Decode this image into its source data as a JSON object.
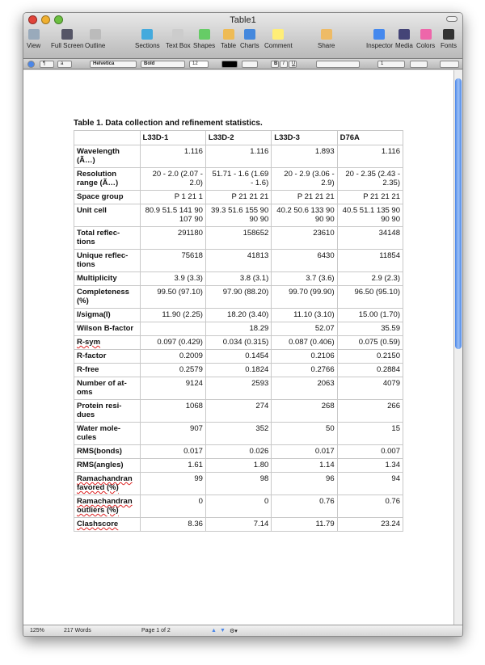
{
  "window": {
    "title": "Table1"
  },
  "toolbar": [
    {
      "label": "View",
      "icon": "view-icon"
    },
    {
      "label": "Full Screen",
      "icon": "fullscreen-icon"
    },
    {
      "label": "Outline",
      "icon": "outline-icon"
    },
    {
      "label": "Sections",
      "icon": "sections-icon"
    },
    {
      "label": "Text Box",
      "icon": "textbox-icon"
    },
    {
      "label": "Shapes",
      "icon": "shapes-icon"
    },
    {
      "label": "Table",
      "icon": "table-icon"
    },
    {
      "label": "Charts",
      "icon": "charts-icon"
    },
    {
      "label": "Comment",
      "icon": "comment-icon"
    },
    {
      "label": "Share",
      "icon": "share-icon"
    },
    {
      "label": "Inspector",
      "icon": "inspector-icon"
    },
    {
      "label": "Media",
      "icon": "media-icon"
    },
    {
      "label": "Colors",
      "icon": "colors-icon"
    },
    {
      "label": "Fonts",
      "icon": "fonts-icon"
    }
  ],
  "format_bar": {
    "paragraph_style": "¶",
    "char_style": "a",
    "font": "Helvetica",
    "weight": "Bold",
    "size": "12",
    "bold": "B",
    "italic": "I",
    "underline": "U",
    "line_spacing": "1"
  },
  "document": {
    "caption": "Table 1.  Data collection and refinement statistics.",
    "columns": [
      "",
      "L33D-1",
      "L33D-2",
      "L33D-3",
      "D76A"
    ],
    "rows": [
      {
        "label": "Wavelength (Ã…)",
        "values": [
          "1.116",
          "1.116",
          "1.893",
          "1.116"
        ]
      },
      {
        "label": "Resolution range (Ã…)",
        "values": [
          "20  - 2.0 (2.07 - 2.0)",
          "51.71  - 1.6 (1.69 - 1.6)",
          "20  - 2.9 (3.06 - 2.9)",
          "20  - 2.35 (2.43 - 2.35)"
        ]
      },
      {
        "label": "Space group",
        "values": [
          "P 1 21 1",
          "P 21 21 21",
          "P 21 21 21",
          "P 21 21 21"
        ]
      },
      {
        "label": "Unit cell",
        "values": [
          "80.9 51.5 141 90 107 90",
          "39.3 51.6 155 90 90 90",
          "40.2 50.6 133 90 90 90",
          "40.5 51.1 135 90 90 90"
        ]
      },
      {
        "label": "Total reflec-tions",
        "values": [
          "291180",
          "158652",
          "23610",
          "34148"
        ]
      },
      {
        "label": "Unique reflec-tions",
        "values": [
          "75618",
          "41813",
          "6430",
          "11854"
        ]
      },
      {
        "label": "Multiplicity",
        "values": [
          "3.9 (3.3)",
          "3.8 (3.1)",
          "3.7 (3.6)",
          "2.9 (2.3)"
        ]
      },
      {
        "label": "Completeness (%)",
        "values": [
          "99.50 (97.10)",
          "97.90 (88.20)",
          "99.70 (99.90)",
          "96.50 (95.10)"
        ]
      },
      {
        "label": "I/sigma(I)",
        "values": [
          "11.90 (2.25)",
          "18.20 (3.40)",
          "11.10 (3.10)",
          "15.00 (1.70)"
        ]
      },
      {
        "label": "Wilson B-factor",
        "values": [
          "",
          "18.29",
          "52.07",
          "35.59"
        ]
      },
      {
        "label": "R-sym",
        "values": [
          "0.097 (0.429)",
          "0.034 (0.315)",
          "0.087 (0.406)",
          "0.075 (0.59)"
        ],
        "spell": true
      },
      {
        "label": "R-factor",
        "values": [
          "0.2009",
          "0.1454",
          "0.2106",
          "0.2150"
        ]
      },
      {
        "label": "R-free",
        "values": [
          "0.2579",
          "0.1824",
          "0.2766",
          "0.2884"
        ]
      },
      {
        "label": "Number of at-oms",
        "values": [
          "9124",
          "2593",
          "2063",
          "4079"
        ]
      },
      {
        "label": "Protein resi-dues",
        "values": [
          "1068",
          "274",
          "268",
          "266"
        ]
      },
      {
        "label": "Water mole-cules",
        "values": [
          "907",
          "352",
          "50",
          "15"
        ]
      },
      {
        "label": "RMS(bonds)",
        "values": [
          "0.017",
          "0.026",
          "0.017",
          "0.007"
        ]
      },
      {
        "label": "RMS(angles)",
        "values": [
          "1.61",
          "1.80",
          "1.14",
          "1.34"
        ]
      },
      {
        "label": "Ramachandran favored (%)",
        "values": [
          "99",
          "98",
          "96",
          "94"
        ],
        "spell": true
      },
      {
        "label": "Ramachandran outliers (%)",
        "values": [
          "0",
          "0",
          "0.76",
          "0.76"
        ],
        "spell": true
      },
      {
        "label": "Clashscore",
        "values": [
          "8.36",
          "7.14",
          "11.79",
          "23.24"
        ],
        "spell": true
      }
    ]
  },
  "status": {
    "zoom": "125%",
    "words": "217 Words",
    "page": "Page 1 of 2"
  }
}
